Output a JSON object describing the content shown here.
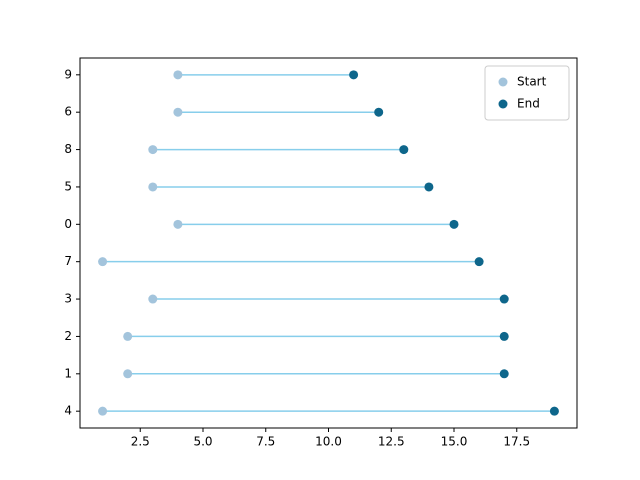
{
  "chart_data": {
    "type": "dumbbell",
    "categories": [
      "4",
      "1",
      "2",
      "3",
      "7",
      "0",
      "5",
      "8",
      "6",
      "9"
    ],
    "series": [
      {
        "name": "Start",
        "color": "#a3c4dc",
        "values": [
          1,
          2,
          2,
          3,
          1,
          4,
          3,
          3,
          4,
          4
        ]
      },
      {
        "name": "End",
        "color": "#0e668b",
        "values": [
          19,
          17,
          17,
          17,
          16,
          15,
          14,
          13,
          12,
          11
        ]
      }
    ],
    "connector_color": "#87ceeb",
    "xlim": [
      0.1,
      19.9
    ],
    "xticks": [
      2.5,
      {
        "value": 5,
        "label": "5.0"
      },
      7.5,
      {
        "value": 10,
        "label": "10.0"
      },
      12.5,
      {
        "value": 15,
        "label": "15.0"
      },
      17.5
    ],
    "legend": "upper right"
  }
}
